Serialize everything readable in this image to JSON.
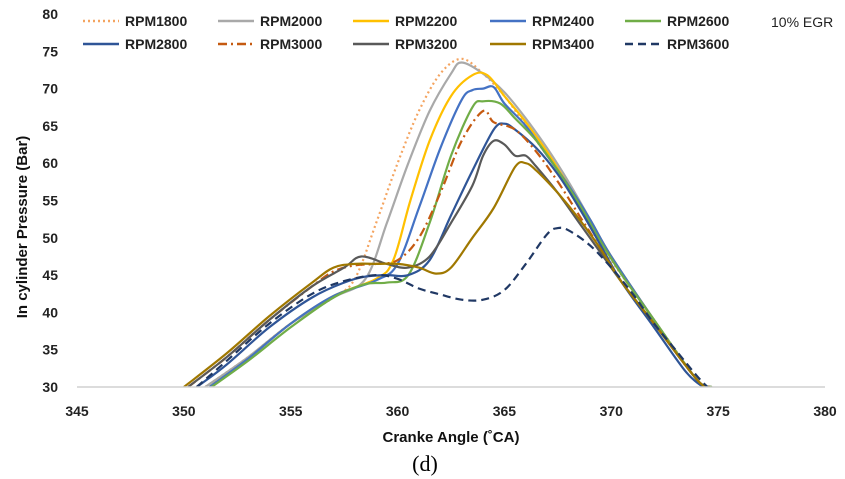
{
  "caption": "(d)",
  "chart_data": {
    "type": "line",
    "xlabel": "Cranke Angle (˚CA)",
    "ylabel": "In cylinder Pressure (Bar)",
    "xlim": [
      345,
      380
    ],
    "ylim": [
      30,
      80
    ],
    "x_ticks": [
      345,
      350,
      355,
      360,
      365,
      370,
      375,
      380
    ],
    "y_ticks": [
      30,
      35,
      40,
      45,
      50,
      55,
      60,
      65,
      70,
      75,
      80
    ],
    "x_tick_labels": [
      "345",
      "350",
      "355",
      "360",
      "365",
      "370",
      "375",
      "380"
    ],
    "y_tick_labels": [
      "30",
      "35",
      "40",
      "45",
      "50",
      "55",
      "60",
      "65",
      "70",
      "75",
      "80"
    ],
    "grid": false,
    "legend_position": "top",
    "annotation": "10% EGR",
    "series": [
      {
        "name": "RPM1800",
        "color": "#F4A460",
        "dash": "dotted",
        "points": [
          [
            351,
            30
          ],
          [
            353,
            34
          ],
          [
            355,
            38.5
          ],
          [
            357,
            42
          ],
          [
            358,
            44.5
          ],
          [
            359,
            52
          ],
          [
            360,
            60
          ],
          [
            361,
            67
          ],
          [
            362,
            72
          ],
          [
            363,
            74
          ],
          [
            364,
            72
          ],
          [
            365,
            69
          ],
          [
            366,
            65
          ],
          [
            367,
            61
          ],
          [
            368,
            57
          ],
          [
            369,
            52
          ],
          [
            370,
            47
          ],
          [
            372,
            39
          ],
          [
            374,
            31
          ],
          [
            374.5,
            30
          ]
        ]
      },
      {
        "name": "RPM2000",
        "color": "#A9A9A9",
        "dash": "solid",
        "points": [
          [
            351,
            30
          ],
          [
            353,
            34
          ],
          [
            355,
            38.5
          ],
          [
            357,
            42
          ],
          [
            358.5,
            44.5
          ],
          [
            359.5,
            52
          ],
          [
            360.5,
            60
          ],
          [
            361.5,
            67
          ],
          [
            362.5,
            72
          ],
          [
            363,
            73.5
          ],
          [
            364,
            72
          ],
          [
            365,
            69.5
          ],
          [
            366,
            66
          ],
          [
            367,
            62
          ],
          [
            368,
            57.5
          ],
          [
            369,
            52.5
          ],
          [
            370,
            47.5
          ],
          [
            372,
            39
          ],
          [
            374,
            31
          ],
          [
            374.7,
            30
          ]
        ]
      },
      {
        "name": "RPM2200",
        "color": "#FFC000",
        "dash": "solid",
        "points": [
          [
            351.2,
            30
          ],
          [
            353,
            33.8
          ],
          [
            355,
            38.5
          ],
          [
            357,
            42.2
          ],
          [
            359,
            44.5
          ],
          [
            359.8,
            47
          ],
          [
            360.6,
            55
          ],
          [
            361.5,
            63
          ],
          [
            362.5,
            69
          ],
          [
            363.5,
            71.8
          ],
          [
            364.2,
            71.8
          ],
          [
            365,
            69
          ],
          [
            366,
            65.5
          ],
          [
            367,
            61.5
          ],
          [
            368,
            57
          ],
          [
            369,
            52.5
          ],
          [
            370,
            47.5
          ],
          [
            372,
            39
          ],
          [
            374,
            31
          ],
          [
            374.7,
            30
          ]
        ]
      },
      {
        "name": "RPM2400",
        "color": "#4472C4",
        "dash": "solid",
        "points": [
          [
            351.2,
            30
          ],
          [
            353,
            33.8
          ],
          [
            355,
            38.5
          ],
          [
            357,
            42.2
          ],
          [
            359,
            44.3
          ],
          [
            360,
            46.5
          ],
          [
            361,
            54
          ],
          [
            362,
            62
          ],
          [
            363,
            68.5
          ],
          [
            363.5,
            69.8
          ],
          [
            364,
            70
          ],
          [
            364.5,
            70.2
          ],
          [
            365,
            68
          ],
          [
            366,
            65
          ],
          [
            367,
            61
          ],
          [
            368,
            57
          ],
          [
            369,
            52.5
          ],
          [
            370,
            47.5
          ],
          [
            372,
            39
          ],
          [
            374,
            31
          ],
          [
            374.7,
            30
          ]
        ]
      },
      {
        "name": "RPM2600",
        "color": "#70AD47",
        "dash": "solid",
        "points": [
          [
            351.3,
            30
          ],
          [
            353,
            33.5
          ],
          [
            355,
            38
          ],
          [
            357,
            42
          ],
          [
            358.5,
            43.8
          ],
          [
            359.5,
            44
          ],
          [
            360.5,
            45
          ],
          [
            361.5,
            52
          ],
          [
            362.5,
            61
          ],
          [
            363.5,
            67.5
          ],
          [
            364,
            68.3
          ],
          [
            364.8,
            68
          ],
          [
            365.5,
            66
          ],
          [
            366.5,
            63
          ],
          [
            367.5,
            59
          ],
          [
            368.5,
            54.5
          ],
          [
            369.5,
            49.5
          ],
          [
            370.5,
            45
          ],
          [
            372,
            39
          ],
          [
            374,
            31
          ],
          [
            374.7,
            30
          ]
        ]
      },
      {
        "name": "RPM2800",
        "color": "#2F5597",
        "dash": "solid",
        "points": [
          [
            350.6,
            30
          ],
          [
            352,
            33
          ],
          [
            354,
            38
          ],
          [
            356,
            42
          ],
          [
            357.5,
            44
          ],
          [
            358.5,
            44.8
          ],
          [
            359.5,
            45
          ],
          [
            360.5,
            45
          ],
          [
            361.5,
            47
          ],
          [
            362.5,
            53
          ],
          [
            363.5,
            59
          ],
          [
            364.5,
            64.5
          ],
          [
            365,
            65.3
          ],
          [
            365.5,
            64.5
          ],
          [
            366.5,
            62
          ],
          [
            367.5,
            58.5
          ],
          [
            368.5,
            54
          ],
          [
            369.5,
            49
          ],
          [
            370.5,
            44
          ],
          [
            372,
            38
          ],
          [
            373.5,
            32
          ],
          [
            374.3,
            30
          ]
        ]
      },
      {
        "name": "RPM3000",
        "color": "#C55A11",
        "dash": "dashdot",
        "points": [
          [
            350.2,
            30
          ],
          [
            352,
            34
          ],
          [
            354,
            39
          ],
          [
            356,
            43.5
          ],
          [
            357,
            45.5
          ],
          [
            358,
            46.3
          ],
          [
            359,
            46.5
          ],
          [
            360,
            47
          ],
          [
            361,
            50
          ],
          [
            362,
            56
          ],
          [
            363,
            63
          ],
          [
            364,
            67
          ],
          [
            364.5,
            65.5
          ],
          [
            365.5,
            64.5
          ],
          [
            366.5,
            61.5
          ],
          [
            367.5,
            57.5
          ],
          [
            368.5,
            53
          ],
          [
            369.5,
            48.5
          ],
          [
            370.5,
            44
          ],
          [
            372,
            38.5
          ],
          [
            374,
            31
          ],
          [
            374.6,
            30
          ]
        ]
      },
      {
        "name": "RPM3200",
        "color": "#595959",
        "dash": "solid",
        "points": [
          [
            350.2,
            30
          ],
          [
            352,
            34
          ],
          [
            354,
            39
          ],
          [
            356,
            43.5
          ],
          [
            357.5,
            46
          ],
          [
            358.3,
            47.5
          ],
          [
            359.5,
            46.5
          ],
          [
            360.5,
            46
          ],
          [
            361.5,
            47.5
          ],
          [
            362.5,
            52
          ],
          [
            363.5,
            57
          ],
          [
            364,
            61
          ],
          [
            364.5,
            63
          ],
          [
            365,
            62.5
          ],
          [
            365.5,
            61
          ],
          [
            366,
            61
          ],
          [
            366.5,
            59.5
          ],
          [
            367.5,
            56
          ],
          [
            368.5,
            52
          ],
          [
            369.5,
            48
          ],
          [
            370.5,
            44
          ],
          [
            372,
            38.5
          ],
          [
            374,
            31
          ],
          [
            374.6,
            30
          ]
        ]
      },
      {
        "name": "RPM3400",
        "color": "#A07800",
        "dash": "solid",
        "points": [
          [
            350,
            30
          ],
          [
            352,
            34.5
          ],
          [
            354,
            39.5
          ],
          [
            356,
            44
          ],
          [
            357,
            46
          ],
          [
            358,
            46.5
          ],
          [
            359,
            46.5
          ],
          [
            360,
            46.5
          ],
          [
            361,
            46
          ],
          [
            361.8,
            45.2
          ],
          [
            362.5,
            46
          ],
          [
            363.5,
            50
          ],
          [
            364.5,
            54
          ],
          [
            365.5,
            59.5
          ],
          [
            366,
            60
          ],
          [
            366.5,
            59
          ],
          [
            367.5,
            56
          ],
          [
            368.5,
            52.5
          ],
          [
            369.5,
            48.5
          ],
          [
            370.5,
            44
          ],
          [
            372,
            38.5
          ],
          [
            374,
            31
          ],
          [
            374.6,
            30
          ]
        ]
      },
      {
        "name": "RPM3600",
        "color": "#203864",
        "dash": "dashed",
        "points": [
          [
            350.6,
            30
          ],
          [
            352,
            33.5
          ],
          [
            354,
            38.5
          ],
          [
            356,
            42.5
          ],
          [
            357.5,
            44.2
          ],
          [
            359,
            45
          ],
          [
            360,
            44.5
          ],
          [
            361,
            43.2
          ],
          [
            362,
            42.4
          ],
          [
            363,
            41.7
          ],
          [
            364,
            41.7
          ],
          [
            365,
            43
          ],
          [
            366,
            46.5
          ],
          [
            367,
            50.5
          ],
          [
            367.5,
            51.3
          ],
          [
            368,
            51
          ],
          [
            369,
            49
          ],
          [
            370,
            46
          ],
          [
            371,
            42.5
          ],
          [
            372,
            38.5
          ],
          [
            373,
            35
          ],
          [
            374,
            31.5
          ],
          [
            374.5,
            30
          ]
        ]
      }
    ]
  }
}
